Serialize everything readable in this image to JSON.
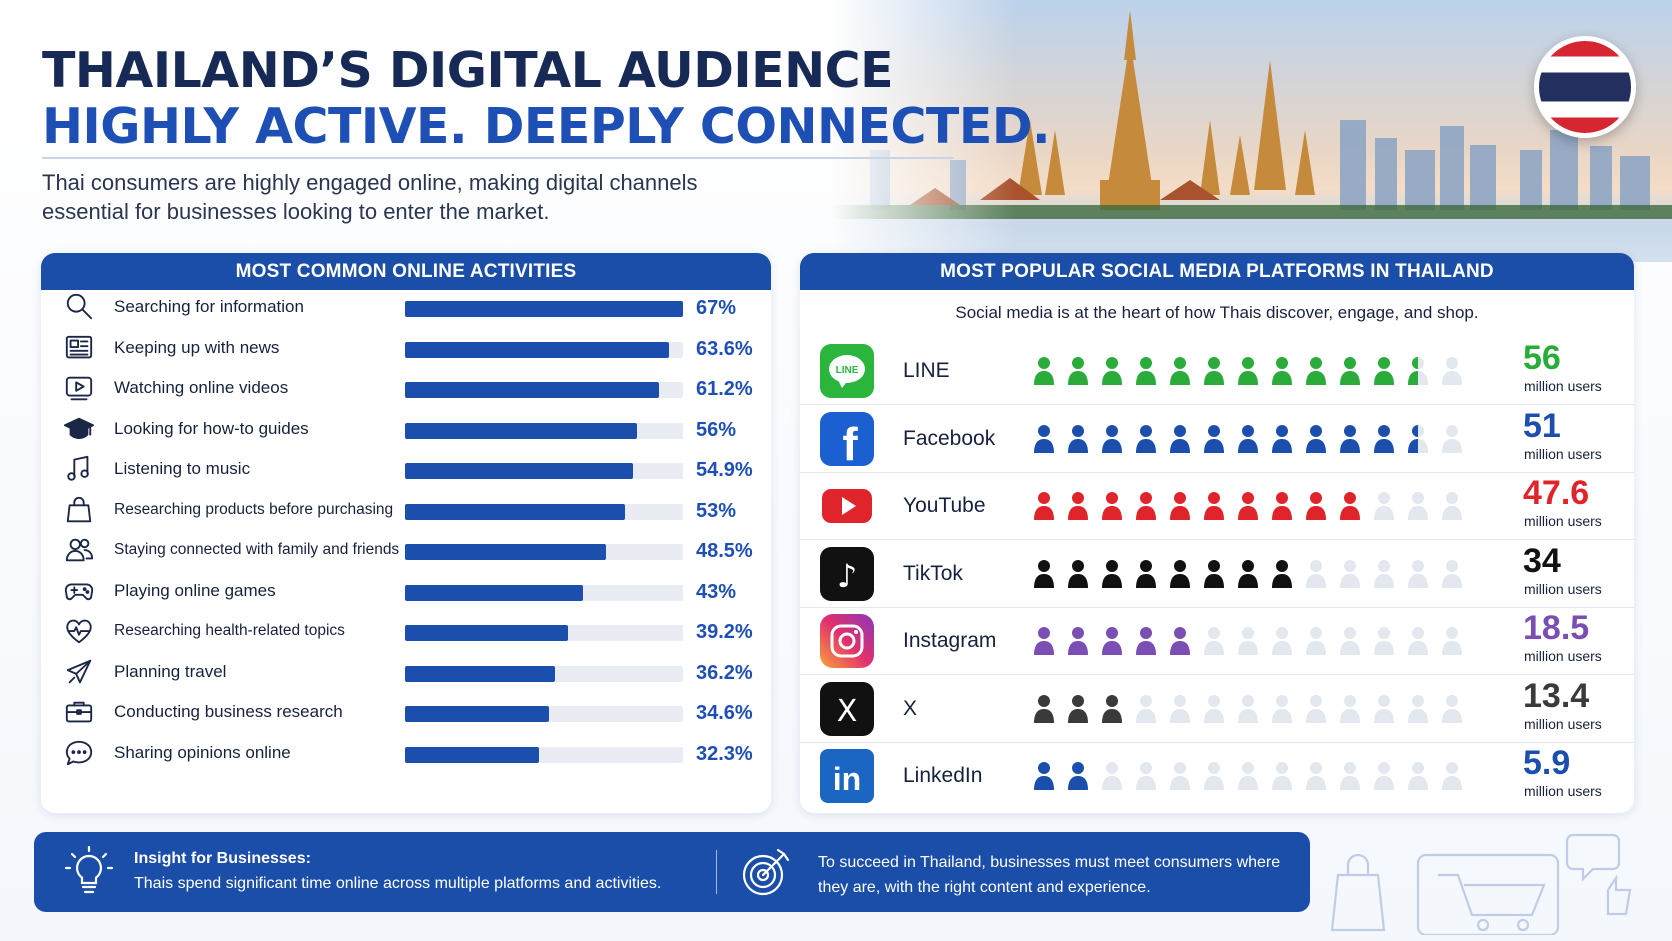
{
  "header": {
    "title_line1": "THAILAND’S DIGITAL AUDIENCE",
    "title_line2": "HIGHLY ACTIVE. DEEPLY CONNECTED.",
    "subtitle": "Thai consumers are highly engaged online, making digital channels essential for businesses looking to enter the market."
  },
  "activities": {
    "heading": "MOST COMMON ONLINE ACTIVITIES",
    "bar_color": "#1c4fad",
    "items": [
      {
        "label": "Searching for information",
        "value": "67%",
        "pct": 67,
        "icon": "search-icon"
      },
      {
        "label": "Keeping up with news",
        "value": "63.6%",
        "pct": 63.6,
        "icon": "newspaper-icon"
      },
      {
        "label": "Watching online videos",
        "value": "61.2%",
        "pct": 61.2,
        "icon": "video-play-icon"
      },
      {
        "label": "Looking for how-to guides",
        "value": "56%",
        "pct": 56,
        "icon": "graduation-cap-icon"
      },
      {
        "label": "Listening to music",
        "value": "54.9%",
        "pct": 54.9,
        "icon": "music-note-icon"
      },
      {
        "label": "Researching products before purchasing",
        "value": "53%",
        "pct": 53,
        "icon": "shopping-bag-icon"
      },
      {
        "label": "Staying connected with family and friends",
        "value": "48.5%",
        "pct": 48.5,
        "icon": "people-icon"
      },
      {
        "label": "Playing online games",
        "value": "43%",
        "pct": 43,
        "icon": "gamepad-icon"
      },
      {
        "label": "Researching health-related topics",
        "value": "39.2%",
        "pct": 39.2,
        "icon": "heart-pulse-icon"
      },
      {
        "label": "Planning travel",
        "value": "36.2%",
        "pct": 36.2,
        "icon": "airplane-icon"
      },
      {
        "label": "Conducting business research",
        "value": "34.6%",
        "pct": 34.6,
        "icon": "briefcase-icon"
      },
      {
        "label": "Sharing opinions online",
        "value": "32.3%",
        "pct": 32.3,
        "icon": "chat-bubble-icon"
      }
    ]
  },
  "platforms": {
    "heading": "MOST POPULAR SOCIAL MEDIA PLATFORMS IN THAILAND",
    "subheading": "Social media is at the heart of how Thais discover, engage, and shop.",
    "unit_label": "million users",
    "items": [
      {
        "name": "LINE",
        "value": "56",
        "users_million": 56,
        "filled_icons": 11.5,
        "color": "#2bab3a",
        "logo": "line-logo-icon",
        "logo_text": "LINE"
      },
      {
        "name": "Facebook",
        "value": "51",
        "users_million": 51,
        "filled_icons": 11.5,
        "color": "#1c4fad",
        "logo": "facebook-logo-icon",
        "logo_text": "f"
      },
      {
        "name": "YouTube",
        "value": "47.6",
        "users_million": 47.6,
        "filled_icons": 10,
        "color": "#e0242b",
        "logo": "youtube-logo-icon",
        "logo_text": ""
      },
      {
        "name": "TikTok",
        "value": "34",
        "users_million": 34,
        "filled_icons": 8,
        "color": "#111111",
        "logo": "tiktok-logo-icon",
        "logo_text": "♪"
      },
      {
        "name": "Instagram",
        "value": "18.5",
        "users_million": 18.5,
        "filled_icons": 5,
        "color": "#7a4eb2",
        "logo": "instagram-logo-icon",
        "logo_text": ""
      },
      {
        "name": "X",
        "value": "13.4",
        "users_million": 13.4,
        "filled_icons": 3,
        "color": "#3a3a3a",
        "logo": "x-logo-icon",
        "logo_text": "X"
      },
      {
        "name": "LinkedIn",
        "value": "5.9",
        "users_million": 5.9,
        "filled_icons": 2,
        "color": "#1c4fad",
        "logo": "linkedin-logo-icon",
        "logo_text": "in"
      }
    ]
  },
  "insight": {
    "title": "Insight for Businesses:",
    "text1": "Thais spend significant time online across multiple platforms and activities.",
    "text2": "To succeed in Thailand, businesses must meet consumers where they are, with the right content and experience."
  }
}
